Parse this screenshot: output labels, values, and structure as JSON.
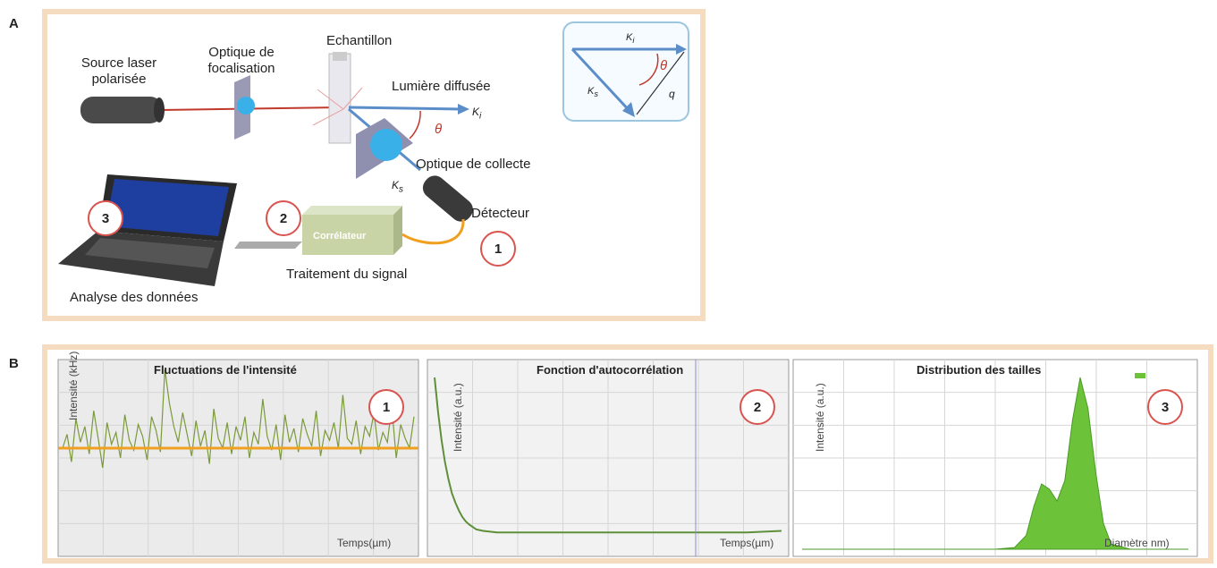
{
  "panel_a": {
    "letter": "A",
    "labels": {
      "source_laser_line1": "Source laser",
      "source_laser_line2": "polarisée",
      "optique_foc_line1": "Optique de",
      "optique_foc_line2": "focalisation",
      "echantillon": "Echantillon",
      "lumiere_diffusee": "Lumière diffusée",
      "theta": "θ",
      "ki": "K",
      "ki_sub": "i",
      "ks": "K",
      "ks_sub": "s",
      "q": "q",
      "optique_collecte": "Optique de collecte",
      "detecteur": "Détecteur",
      "correlateur": "Corrélateur",
      "traitement": "Traitement du signal",
      "analyse": "Analyse des données"
    },
    "step_markers": [
      "1",
      "2",
      "3"
    ]
  },
  "panel_b": {
    "letter": "B",
    "charts": [
      {
        "title": "Fluctuations de l'intensité",
        "ylabel": "Intensité (kHz)",
        "xlabel": "Temps(µm)",
        "marker": "1"
      },
      {
        "title": "Fonction d'autocorrélation",
        "ylabel": "Intensité (a.u.)",
        "xlabel": "Temps(µm)",
        "marker": "2"
      },
      {
        "title": "Distribution des tailles",
        "ylabel": "Intensité (a.u.)",
        "xlabel": "Diamètre nm)",
        "marker": "3"
      }
    ]
  },
  "chart_data": [
    {
      "type": "line",
      "title": "Fluctuations de l'intensité",
      "ylabel": "Intensité (kHz)",
      "xlabel": "Temps(µm)",
      "series": [
        {
          "values": [
            0.55,
            0.62,
            0.48,
            0.7,
            0.58,
            0.66,
            0.52,
            0.74,
            0.6,
            0.45,
            0.68,
            0.57,
            0.63,
            0.5,
            0.72,
            0.59,
            0.54,
            0.67,
            0.61,
            0.49,
            0.71,
            0.64,
            0.53,
            0.95,
            0.78,
            0.66,
            0.58,
            0.73,
            0.62,
            0.51,
            0.69,
            0.56,
            0.64,
            0.47,
            0.75,
            0.6,
            0.55,
            0.68,
            0.52,
            0.66,
            0.59,
            0.71,
            0.5,
            0.63,
            0.57,
            0.8,
            0.61,
            0.54,
            0.67,
            0.49,
            0.72,
            0.58,
            0.65,
            0.53,
            0.7,
            0.62,
            0.56,
            0.74,
            0.51,
            0.64,
            0.59,
            0.68,
            0.55,
            0.82,
            0.6,
            0.57,
            0.69,
            0.52,
            0.66,
            0.61,
            0.73,
            0.54,
            0.63,
            0.58,
            0.76,
            0.5,
            0.67,
            0.6,
            0.55,
            0.71
          ]
        },
        {
          "values": [
            0.55
          ]
        }
      ],
      "colors": [
        "#7a9a3a",
        "#f0a020"
      ]
    },
    {
      "type": "line",
      "title": "Fonction d'autocorrélation",
      "ylabel": "Intensité (a.u.)",
      "xlabel": "Temps(µm)",
      "x": [
        0,
        1,
        2,
        3,
        4,
        5,
        6,
        7,
        8,
        9,
        10,
        12,
        14,
        16,
        18,
        20,
        25,
        30,
        40,
        50,
        60,
        70,
        80,
        90,
        100
      ],
      "series": [
        {
          "values": [
            1.0,
            0.78,
            0.6,
            0.46,
            0.35,
            0.26,
            0.2,
            0.15,
            0.11,
            0.08,
            0.06,
            0.03,
            0.02,
            0.015,
            0.01,
            0.01,
            0.01,
            0.01,
            0.01,
            0.01,
            0.01,
            0.01,
            0.01,
            0.01,
            0.02
          ]
        }
      ],
      "colors": [
        "#5f8f3a"
      ]
    },
    {
      "type": "area",
      "title": "Distribution des tailles",
      "ylabel": "Intensité (a.u.)",
      "xlabel": "Diamètre nm)",
      "x": [
        0,
        10,
        20,
        30,
        40,
        50,
        55,
        58,
        60,
        62,
        64,
        66,
        68,
        70,
        72,
        74,
        76,
        78,
        80,
        85,
        90,
        100
      ],
      "series": [
        {
          "values": [
            0,
            0,
            0,
            0,
            0,
            0,
            0.01,
            0.08,
            0.25,
            0.38,
            0.35,
            0.28,
            0.4,
            0.75,
            1.0,
            0.82,
            0.45,
            0.15,
            0.03,
            0,
            0,
            0
          ]
        }
      ],
      "colors": [
        "#6cc33a"
      ]
    }
  ]
}
